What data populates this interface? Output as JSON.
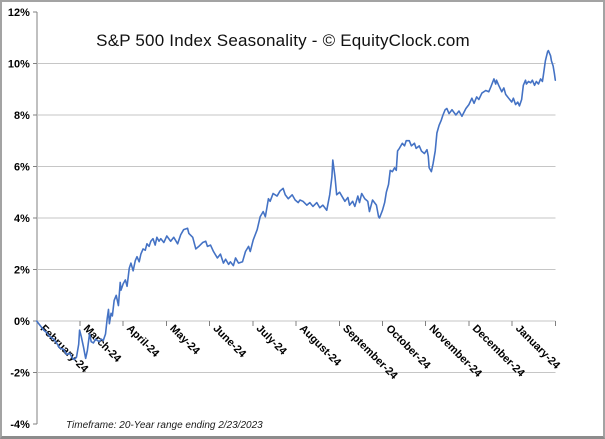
{
  "chart": {
    "title": "S&P 500 Index Seasonality - © EquityClock.com",
    "footnote": "Timeframe: 20-Year range ending 2/23/2023"
  },
  "colors": {
    "line": "#4472c4",
    "grid": "#c6c6c6",
    "axis": "#808080",
    "text": "#000000",
    "background": "#ffffff"
  },
  "chart_data": {
    "type": "line",
    "title": "S&P 500 Index Seasonality - © EquityClock.com",
    "annotation": "Timeframe: 20-Year range ending 2/23/2023",
    "xlabel": "",
    "ylabel": "",
    "ylim": [
      -4,
      12
    ],
    "y_step": 2,
    "y_ticks": [
      "12%",
      "10%",
      "8%",
      "6%",
      "4%",
      "2%",
      "0%",
      "-2%",
      "-4%"
    ],
    "x_categories": [
      "February-24",
      "March-24",
      "April-24",
      "May-24",
      "June-24",
      "July-24",
      "August-24",
      "September-24",
      "October-24",
      "November-24",
      "December-24",
      "January-24"
    ],
    "grid": true,
    "legend": "none",
    "line_color": "#4472c4",
    "points": [
      [
        0,
        0
      ],
      [
        0.07,
        -0.15
      ],
      [
        0.16,
        -0.35
      ],
      [
        0.23,
        -0.45
      ],
      [
        0.3,
        -0.6
      ],
      [
        0.39,
        -0.7
      ],
      [
        0.46,
        -0.85
      ],
      [
        0.53,
        -1.05
      ],
      [
        0.62,
        -1.1
      ],
      [
        0.69,
        -1.3
      ],
      [
        0.76,
        -1.25
      ],
      [
        0.83,
        -1.45
      ],
      [
        0.87,
        -1.5
      ],
      [
        0.92,
        -1.4
      ],
      [
        0.97,
        -0.9
      ],
      [
        0.99,
        -0.35
      ],
      [
        1.03,
        -0.6
      ],
      [
        1.08,
        -1
      ],
      [
        1.13,
        -1.45
      ],
      [
        1.17,
        -1.15
      ],
      [
        1.22,
        -0.5
      ],
      [
        1.26,
        -0.8
      ],
      [
        1.31,
        -0.85
      ],
      [
        1.36,
        -0.7
      ],
      [
        1.4,
        -0.75
      ],
      [
        1.45,
        -0.8
      ],
      [
        1.49,
        -0.7
      ],
      [
        1.54,
        -0.75
      ],
      [
        1.59,
        -0.5
      ],
      [
        1.63,
        0.1
      ],
      [
        1.66,
        0.45
      ],
      [
        1.68,
        -0.1
      ],
      [
        1.72,
        0.3
      ],
      [
        1.75,
        0.2
      ],
      [
        1.79,
        0.8
      ],
      [
        1.84,
        1
      ],
      [
        1.89,
        0.6
      ],
      [
        1.93,
        1.5
      ],
      [
        1.95,
        1.2
      ],
      [
        2,
        1.45
      ],
      [
        2.05,
        1.6
      ],
      [
        2.09,
        1.35
      ],
      [
        2.14,
        2.05
      ],
      [
        2.18,
        2.25
      ],
      [
        2.23,
        1.95
      ],
      [
        2.28,
        2.35
      ],
      [
        2.32,
        2.5
      ],
      [
        2.37,
        2.3
      ],
      [
        2.41,
        2.6
      ],
      [
        2.46,
        2.8
      ],
      [
        2.51,
        2.75
      ],
      [
        2.55,
        3
      ],
      [
        2.6,
        2.9
      ],
      [
        2.64,
        3.1
      ],
      [
        2.69,
        3.2
      ],
      [
        2.74,
        2.95
      ],
      [
        2.78,
        3.25
      ],
      [
        2.83,
        3.1
      ],
      [
        2.87,
        3.2
      ],
      [
        2.94,
        3.05
      ],
      [
        3.01,
        3.3
      ],
      [
        3.1,
        3.1
      ],
      [
        3.17,
        3.25
      ],
      [
        3.26,
        3
      ],
      [
        3.33,
        3.35
      ],
      [
        3.4,
        3.55
      ],
      [
        3.49,
        3.6
      ],
      [
        3.52,
        3.4
      ],
      [
        3.61,
        3.25
      ],
      [
        3.68,
        2.8
      ],
      [
        3.75,
        2.9
      ],
      [
        3.84,
        3.05
      ],
      [
        3.91,
        3.1
      ],
      [
        3.95,
        2.9
      ],
      [
        4.02,
        2.95
      ],
      [
        4.09,
        2.7
      ],
      [
        4.18,
        2.45
      ],
      [
        4.25,
        2.6
      ],
      [
        4.32,
        2.25
      ],
      [
        4.37,
        2.4
      ],
      [
        4.44,
        2.2
      ],
      [
        4.48,
        2.3
      ],
      [
        4.55,
        2.15
      ],
      [
        4.6,
        2.45
      ],
      [
        4.67,
        2.25
      ],
      [
        4.76,
        2.3
      ],
      [
        4.83,
        2.7
      ],
      [
        4.9,
        2.9
      ],
      [
        4.94,
        2.7
      ],
      [
        5.01,
        3.15
      ],
      [
        5.1,
        3.55
      ],
      [
        5.17,
        4.05
      ],
      [
        5.24,
        4.25
      ],
      [
        5.29,
        4.05
      ],
      [
        5.36,
        4.75
      ],
      [
        5.4,
        4.65
      ],
      [
        5.47,
        4.95
      ],
      [
        5.56,
        4.85
      ],
      [
        5.63,
        5.05
      ],
      [
        5.7,
        5.15
      ],
      [
        5.75,
        4.9
      ],
      [
        5.82,
        4.75
      ],
      [
        5.91,
        4.9
      ],
      [
        5.98,
        4.7
      ],
      [
        6.05,
        4.6
      ],
      [
        6.09,
        4.7
      ],
      [
        6.16,
        4.65
      ],
      [
        6.25,
        4.5
      ],
      [
        6.32,
        4.6
      ],
      [
        6.39,
        4.45
      ],
      [
        6.48,
        4.6
      ],
      [
        6.55,
        4.4
      ],
      [
        6.62,
        4.5
      ],
      [
        6.71,
        4.3
      ],
      [
        6.78,
        4.9
      ],
      [
        6.83,
        5.6
      ],
      [
        6.85,
        6.25
      ],
      [
        6.9,
        5.6
      ],
      [
        6.94,
        4.9
      ],
      [
        7.01,
        5
      ],
      [
        7.06,
        4.85
      ],
      [
        7.13,
        4.65
      ],
      [
        7.2,
        4.8
      ],
      [
        7.24,
        4.5
      ],
      [
        7.31,
        4.65
      ],
      [
        7.36,
        4.45
      ],
      [
        7.43,
        4.85
      ],
      [
        7.47,
        4.6
      ],
      [
        7.52,
        4.95
      ],
      [
        7.59,
        4.75
      ],
      [
        7.66,
        4.65
      ],
      [
        7.7,
        4.25
      ],
      [
        7.77,
        4.7
      ],
      [
        7.86,
        4.5
      ],
      [
        7.91,
        4.05
      ],
      [
        7.93,
        4
      ],
      [
        8,
        4.3
      ],
      [
        8.05,
        4.6
      ],
      [
        8.09,
        5
      ],
      [
        8.14,
        5.3
      ],
      [
        8.18,
        5.85
      ],
      [
        8.23,
        5.8
      ],
      [
        8.28,
        5.95
      ],
      [
        8.32,
        5.85
      ],
      [
        8.35,
        6.6
      ],
      [
        8.39,
        6.7
      ],
      [
        8.46,
        6.9
      ],
      [
        8.51,
        6.8
      ],
      [
        8.55,
        7
      ],
      [
        8.62,
        7
      ],
      [
        8.67,
        6.8
      ],
      [
        8.74,
        6.9
      ],
      [
        8.78,
        6.7
      ],
      [
        8.85,
        6.8
      ],
      [
        8.9,
        6.6
      ],
      [
        8.97,
        6.5
      ],
      [
        9.03,
        6.65
      ],
      [
        9.06,
        6.4
      ],
      [
        9.08,
        5.95
      ],
      [
        9.13,
        5.8
      ],
      [
        9.17,
        6.1
      ],
      [
        9.22,
        6.6
      ],
      [
        9.26,
        7.3
      ],
      [
        9.31,
        7.6
      ],
      [
        9.36,
        7.8
      ],
      [
        9.4,
        8
      ],
      [
        9.45,
        8.2
      ],
      [
        9.49,
        8.25
      ],
      [
        9.54,
        8.05
      ],
      [
        9.61,
        8.2
      ],
      [
        9.7,
        8
      ],
      [
        9.77,
        8.15
      ],
      [
        9.84,
        7.95
      ],
      [
        9.93,
        8.25
      ],
      [
        10,
        8.4
      ],
      [
        10.07,
        8.65
      ],
      [
        10.12,
        8.45
      ],
      [
        10.18,
        8.7
      ],
      [
        10.23,
        8.6
      ],
      [
        10.3,
        8.85
      ],
      [
        10.39,
        8.95
      ],
      [
        10.46,
        8.9
      ],
      [
        10.51,
        9.1
      ],
      [
        10.58,
        9.4
      ],
      [
        10.62,
        9.2
      ],
      [
        10.64,
        9.35
      ],
      [
        10.69,
        9.15
      ],
      [
        10.76,
        8.9
      ],
      [
        10.81,
        9.05
      ],
      [
        10.85,
        8.8
      ],
      [
        10.92,
        8.65
      ],
      [
        10.99,
        8.5
      ],
      [
        11.03,
        8.65
      ],
      [
        11.08,
        8.4
      ],
      [
        11.13,
        8.5
      ],
      [
        11.17,
        8.35
      ],
      [
        11.22,
        8.6
      ],
      [
        11.26,
        9.15
      ],
      [
        11.31,
        9.35
      ],
      [
        11.33,
        9.2
      ],
      [
        11.38,
        9.3
      ],
      [
        11.43,
        9.25
      ],
      [
        11.47,
        9.35
      ],
      [
        11.52,
        9.15
      ],
      [
        11.56,
        9.3
      ],
      [
        11.61,
        9.2
      ],
      [
        11.66,
        9.4
      ],
      [
        11.7,
        9.3
      ],
      [
        11.72,
        9.5
      ],
      [
        11.77,
        10.1
      ],
      [
        11.82,
        10.45
      ],
      [
        11.84,
        10.5
      ],
      [
        11.89,
        10.3
      ],
      [
        11.91,
        10.1
      ],
      [
        11.95,
        9.9
      ],
      [
        11.98,
        9.6
      ],
      [
        12,
        9.35
      ]
    ]
  }
}
